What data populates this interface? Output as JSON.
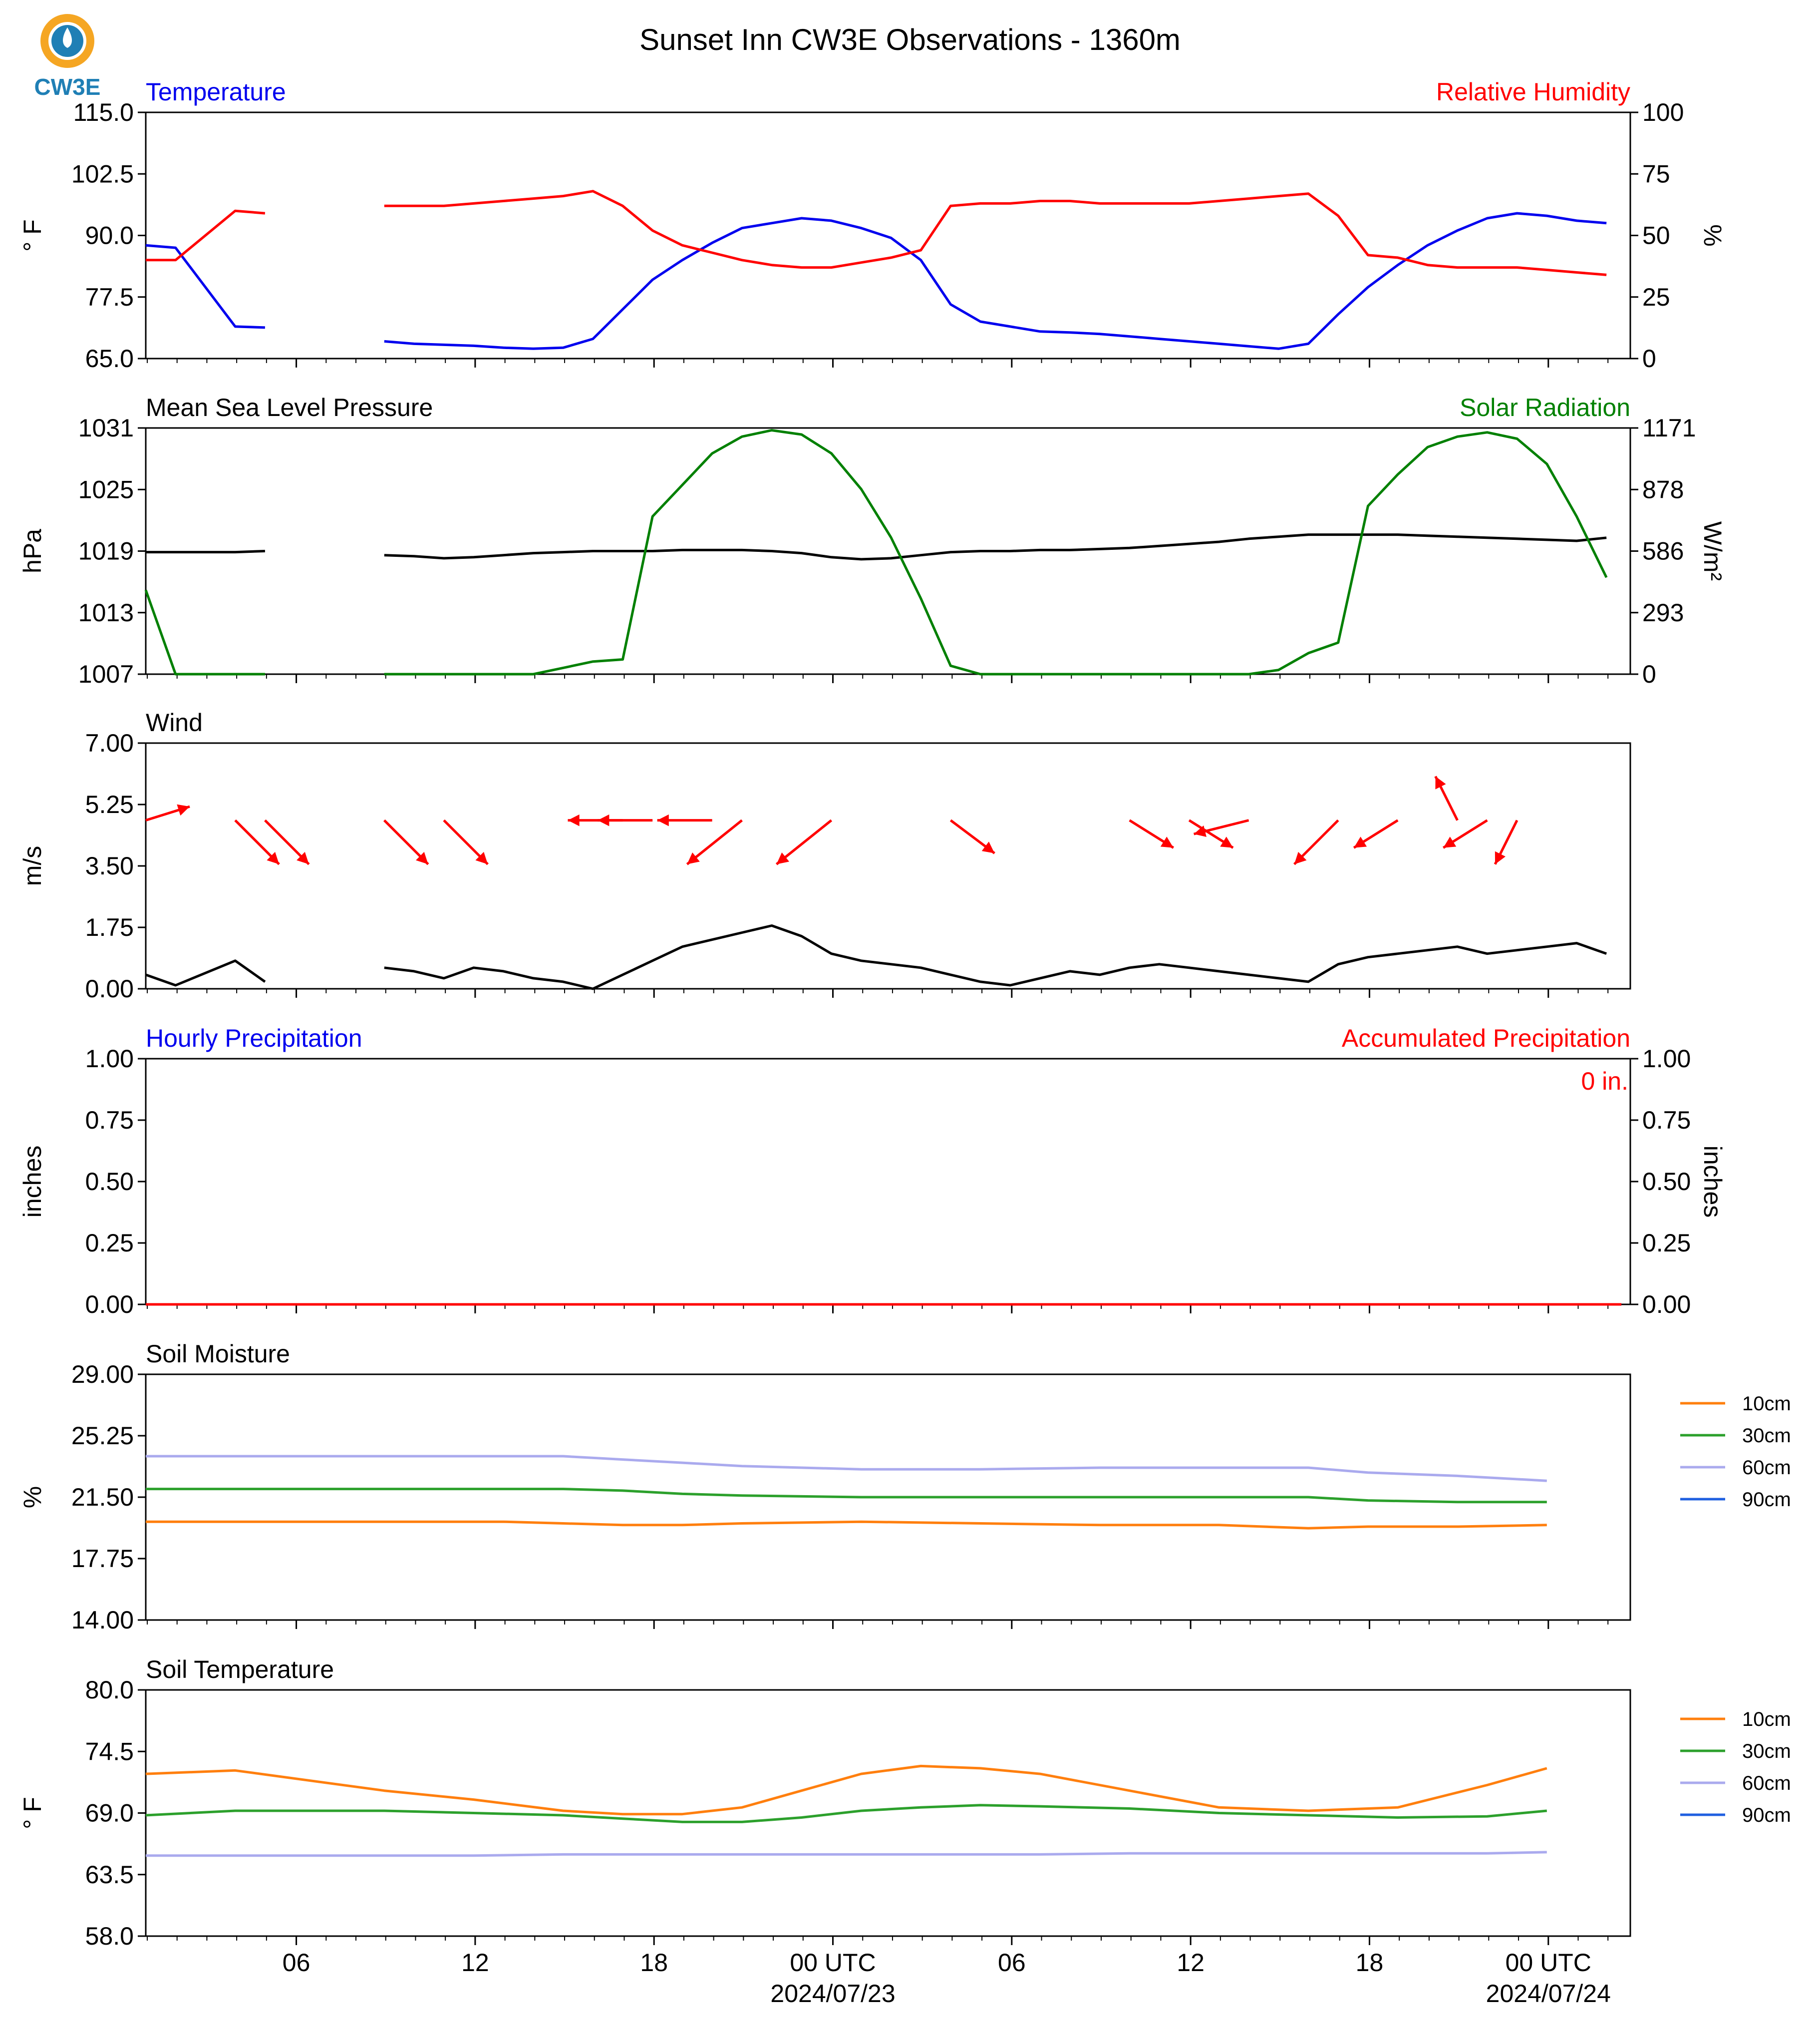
{
  "figure_title": "Sunset Inn CW3E Observations - 1360m",
  "logo": {
    "text": "CW3E",
    "colors": {
      "ring": "#f5a623",
      "wave": "#1f7fb5",
      "text": "#1f7fb5"
    }
  },
  "colors": {
    "red": "#ff0000",
    "blue": "#0000ee",
    "green": "#008000",
    "black": "#000000",
    "orange": "#ff7f0e",
    "dark_green": "#2ca02c",
    "lavender": "#aaaaee",
    "royal_blue": "#1f5fe0"
  },
  "x_axis": {
    "tick_labels": [
      "06",
      "12",
      "18",
      "00 UTC",
      "06",
      "12",
      "18",
      "00 UTC"
    ],
    "date_labels": [
      "2024/07/23",
      "2024/07/24"
    ]
  },
  "chart_data": [
    {
      "type": "line",
      "title_left": "Temperature",
      "title_right": "Relative Humidity",
      "ylabel": "° F",
      "ylabel_right": "%",
      "ylim": [
        65,
        115
      ],
      "ylim_right": [
        0,
        100
      ],
      "yticks": [
        "65.0",
        "77.5",
        "90.0",
        "102.5",
        "115.0"
      ],
      "yticks_right": [
        "0",
        "25",
        "50",
        "75",
        "100"
      ],
      "x_hours": [
        0,
        1,
        3,
        4,
        5,
        8,
        9,
        10,
        11,
        12,
        13,
        14,
        15,
        16,
        17,
        18,
        19,
        20,
        21,
        22,
        23,
        24,
        25,
        26,
        27,
        28,
        29,
        30,
        31,
        32,
        33,
        34,
        35,
        36,
        37,
        38,
        39,
        40,
        41,
        42,
        43,
        44,
        45,
        46,
        47,
        48,
        49
      ],
      "series": [
        {
          "name": "Temperature",
          "color": "#0000ee",
          "axis": "left",
          "values": [
            88.0,
            87.5,
            71.5,
            71.3,
            null,
            68.5,
            68.0,
            67.8,
            67.6,
            67.2,
            67.0,
            67.2,
            69.0,
            75.0,
            81.0,
            85.0,
            88.5,
            91.5,
            92.5,
            93.5,
            93.0,
            91.5,
            89.5,
            85.0,
            76.0,
            72.5,
            71.5,
            70.5,
            70.3,
            70.0,
            69.5,
            69.0,
            68.5,
            68.0,
            67.5,
            67.0,
            68.0,
            74.0,
            79.5,
            84.0,
            88.0,
            91.0,
            93.5,
            94.5,
            94.0,
            93.0,
            92.5
          ]
        },
        {
          "name": "Relative Humidity",
          "color": "#ff0000",
          "axis": "right",
          "values": [
            40,
            40,
            60,
            59,
            null,
            62,
            62,
            62,
            63,
            64,
            65,
            66,
            68,
            62,
            52,
            46,
            43,
            40,
            38,
            37,
            37,
            39,
            41,
            44,
            62,
            63,
            63,
            64,
            64,
            63,
            63,
            63,
            63,
            64,
            65,
            66,
            67,
            58,
            42,
            41,
            38,
            37,
            37,
            37,
            36,
            35,
            34
          ]
        }
      ]
    },
    {
      "type": "line",
      "title_left": "Mean Sea Level Pressure",
      "title_right": "Solar Radiation",
      "ylabel": "hPa",
      "ylabel_right": "W/m²",
      "ylim": [
        1007,
        1031
      ],
      "ylim_right": [
        0,
        1171
      ],
      "yticks": [
        "1007",
        "1013",
        "1019",
        "1025",
        "1031"
      ],
      "yticks_right": [
        "0",
        "293",
        "586",
        "878",
        "1171"
      ],
      "x_hours": [
        0,
        1,
        3,
        4,
        5,
        8,
        9,
        10,
        11,
        12,
        13,
        14,
        15,
        16,
        17,
        18,
        19,
        20,
        21,
        22,
        23,
        24,
        25,
        26,
        27,
        28,
        29,
        30,
        31,
        32,
        33,
        34,
        35,
        36,
        37,
        38,
        39,
        40,
        41,
        42,
        43,
        44,
        45,
        46,
        47,
        48,
        49
      ],
      "series": [
        {
          "name": "Mean Sea Level Pressure",
          "color": "#000000",
          "axis": "left",
          "values": [
            1018.9,
            1018.9,
            1018.9,
            1019.0,
            null,
            1018.6,
            1018.5,
            1018.3,
            1018.4,
            1018.6,
            1018.8,
            1018.9,
            1019.0,
            1019.0,
            1019.0,
            1019.1,
            1019.1,
            1019.1,
            1019.0,
            1018.8,
            1018.4,
            1018.2,
            1018.3,
            1018.6,
            1018.9,
            1019.0,
            1019.0,
            1019.1,
            1019.1,
            1019.2,
            1019.3,
            1019.5,
            1019.7,
            1019.9,
            1020.2,
            1020.4,
            1020.6,
            1020.6,
            1020.6,
            1020.6,
            1020.5,
            1020.4,
            1020.3,
            1020.2,
            1020.1,
            1020.0,
            1020.3
          ]
        },
        {
          "name": "Solar Radiation",
          "color": "#008000",
          "axis": "right",
          "values": [
            400,
            0,
            0,
            0,
            null,
            0,
            0,
            0,
            0,
            0,
            0,
            30,
            60,
            70,
            750,
            900,
            1050,
            1130,
            1160,
            1140,
            1050,
            880,
            650,
            360,
            40,
            0,
            0,
            0,
            0,
            0,
            0,
            0,
            0,
            0,
            0,
            20,
            100,
            150,
            800,
            950,
            1080,
            1130,
            1150,
            1120,
            1000,
            750,
            460
          ]
        }
      ]
    },
    {
      "type": "line",
      "title_left": "Wind",
      "ylabel": "m/s",
      "ylim": [
        0,
        7
      ],
      "yticks": [
        "0.00",
        "1.75",
        "3.50",
        "5.25",
        "7.00"
      ],
      "x_hours": [
        0,
        1,
        3,
        4,
        5,
        8,
        9,
        10,
        11,
        12,
        13,
        14,
        15,
        16,
        17,
        18,
        19,
        20,
        21,
        22,
        23,
        24,
        25,
        26,
        27,
        28,
        29,
        30,
        31,
        32,
        33,
        34,
        35,
        36,
        37,
        38,
        39,
        40,
        41,
        42,
        43,
        44,
        45,
        46,
        47,
        48,
        49
      ],
      "series": [
        {
          "name": "Wind Speed",
          "color": "#000000",
          "values": [
            0.4,
            0.1,
            0.8,
            0.2,
            null,
            0.6,
            0.5,
            0.3,
            0.6,
            0.5,
            0.3,
            0.2,
            0.0,
            0.4,
            0.8,
            1.2,
            1.4,
            1.6,
            1.8,
            1.5,
            1.0,
            0.8,
            0.7,
            0.6,
            0.4,
            0.2,
            0.1,
            0.3,
            0.5,
            0.4,
            0.6,
            0.7,
            0.6,
            0.5,
            0.4,
            0.3,
            0.2,
            0.7,
            0.9,
            1.0,
            1.1,
            1.2,
            1.0,
            1.1,
            1.2,
            1.3,
            1.0
          ]
        }
      ],
      "wind_barbs": {
        "color": "#ff0000",
        "hours": [
          0,
          3,
          4,
          8,
          10,
          16,
          17,
          19,
          20,
          23,
          27,
          33,
          35,
          37,
          40,
          42,
          44,
          45,
          46
        ],
        "u": [
          1.6,
          1.6,
          1.6,
          1.6,
          1.6,
          -2.0,
          -2.0,
          -2.0,
          -2.0,
          -2.0,
          1.6,
          1.6,
          1.6,
          -2.0,
          -1.6,
          -1.6,
          -0.8,
          -1.6,
          -0.8
        ],
        "v": [
          0.5,
          -1.6,
          -1.6,
          -1.6,
          -1.6,
          0.0,
          0.0,
          0.0,
          -1.6,
          -1.6,
          -1.2,
          -1.0,
          -1.0,
          -0.5,
          -1.6,
          -1.0,
          1.6,
          -1.0,
          -1.6
        ]
      }
    },
    {
      "type": "line",
      "title_left": "Hourly Precipitation",
      "title_right": "Accumulated Precipitation",
      "annotation": "0 in.",
      "ylabel": "inches",
      "ylabel_right": "inches",
      "ylim": [
        0,
        1
      ],
      "ylim_right": [
        0,
        1
      ],
      "yticks": [
        "0.00",
        "0.25",
        "0.50",
        "0.75",
        "1.00"
      ],
      "yticks_right": [
        "0.00",
        "0.25",
        "0.50",
        "0.75",
        "1.00"
      ],
      "series": [
        {
          "name": "Hourly Precipitation",
          "color": "#0000ee",
          "axis": "left",
          "values": [
            0,
            0
          ]
        },
        {
          "name": "Accumulated Precipitation",
          "color": "#ff0000",
          "axis": "right",
          "values": [
            0,
            0
          ]
        }
      ]
    },
    {
      "type": "line",
      "title_left": "Soil Moisture",
      "ylabel": "%",
      "ylim": [
        14,
        29
      ],
      "yticks": [
        "14.00",
        "17.75",
        "21.50",
        "25.25",
        "29.00"
      ],
      "x_hours": [
        0,
        3,
        8,
        12,
        14,
        16,
        18,
        20,
        24,
        28,
        32,
        36,
        39,
        41,
        44,
        47
      ],
      "series": [
        {
          "name": "10cm",
          "color": "#ff7f0e",
          "values": [
            20.0,
            20.0,
            20.0,
            20.0,
            19.9,
            19.8,
            19.8,
            19.9,
            20.0,
            19.9,
            19.8,
            19.8,
            19.6,
            19.7,
            19.7,
            19.8
          ]
        },
        {
          "name": "30cm",
          "color": "#2ca02c",
          "values": [
            22.0,
            22.0,
            22.0,
            22.0,
            22.0,
            21.9,
            21.7,
            21.6,
            21.5,
            21.5,
            21.5,
            21.5,
            21.5,
            21.3,
            21.2,
            21.2
          ]
        },
        {
          "name": "60cm",
          "color": "#aaaaee",
          "values": [
            24.0,
            24.0,
            24.0,
            24.0,
            24.0,
            23.8,
            23.6,
            23.4,
            23.2,
            23.2,
            23.3,
            23.3,
            23.3,
            23.0,
            22.8,
            22.5
          ]
        },
        {
          "name": "90cm",
          "color": "#1f5fe0",
          "values": []
        }
      ],
      "legend": [
        "10cm",
        "30cm",
        "60cm",
        "90cm"
      ]
    },
    {
      "type": "line",
      "title_left": "Soil Temperature",
      "ylabel": "° F",
      "ylim": [
        58,
        80
      ],
      "yticks": [
        "58.0",
        "63.5",
        "69.0",
        "74.5",
        "80.0"
      ],
      "x_hours": [
        0,
        3,
        8,
        11,
        14,
        16,
        18,
        20,
        22,
        24,
        26,
        28,
        30,
        33,
        36,
        39,
        42,
        45,
        47
      ],
      "series": [
        {
          "name": "10cm",
          "color": "#ff7f0e",
          "values": [
            72.5,
            72.8,
            71.0,
            70.2,
            69.2,
            68.9,
            68.9,
            69.5,
            71.0,
            72.5,
            73.2,
            73.0,
            72.5,
            71.0,
            69.5,
            69.2,
            69.5,
            71.5,
            73.0
          ]
        },
        {
          "name": "30cm",
          "color": "#2ca02c",
          "values": [
            68.8,
            69.2,
            69.2,
            69.0,
            68.8,
            68.5,
            68.2,
            68.2,
            68.6,
            69.2,
            69.5,
            69.7,
            69.6,
            69.4,
            69.0,
            68.8,
            68.6,
            68.7,
            69.2
          ]
        },
        {
          "name": "60cm",
          "color": "#aaaaee",
          "values": [
            65.2,
            65.2,
            65.2,
            65.2,
            65.3,
            65.3,
            65.3,
            65.3,
            65.3,
            65.3,
            65.3,
            65.3,
            65.3,
            65.4,
            65.4,
            65.4,
            65.4,
            65.4,
            65.5
          ]
        },
        {
          "name": "90cm",
          "color": "#1f5fe0",
          "values": []
        }
      ],
      "legend": [
        "10cm",
        "30cm",
        "60cm",
        "90cm"
      ]
    }
  ]
}
